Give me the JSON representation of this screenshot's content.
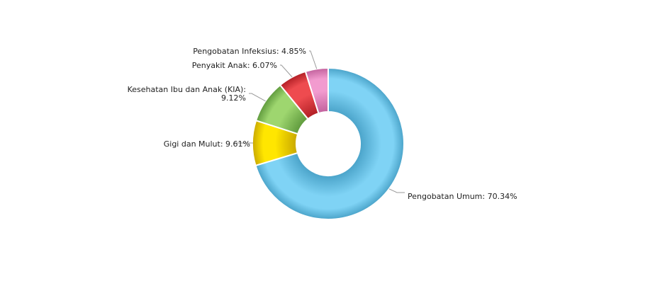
{
  "chart_data": {
    "type": "pie",
    "donut": true,
    "start_angle_deg": -90,
    "direction": "clockwise",
    "title": "",
    "slices": [
      {
        "label": "Pengobatan Umum",
        "value": 70.34,
        "display": "Pengobatan Umum: 70.34%",
        "color": "#7fd3f5",
        "shade": "#4aa3c9"
      },
      {
        "label": "Gigi dan Mulut",
        "value": 9.61,
        "display": "Gigi dan Mulut: 9.61%",
        "color": "#ffe600",
        "shade": "#c9a800"
      },
      {
        "label": "Kesehatan Ibu dan Anak (KIA)",
        "value": 9.12,
        "display": [
          "Kesehatan Ibu dan Anak (KIA):",
          "9.12%"
        ],
        "color": "#9ed66f",
        "shade": "#5f9a3d"
      },
      {
        "label": "Penyakit Anak",
        "value": 6.07,
        "display": "Penyakit Anak: 6.07%",
        "color": "#ee4b4f",
        "shade": "#b11f25"
      },
      {
        "label": "Pengobatan Infeksius",
        "value": 4.85,
        "display": "Pengobatan Infeksius: 4.85%",
        "color": "#f29bcf",
        "shade": "#c2629d"
      }
    ]
  }
}
